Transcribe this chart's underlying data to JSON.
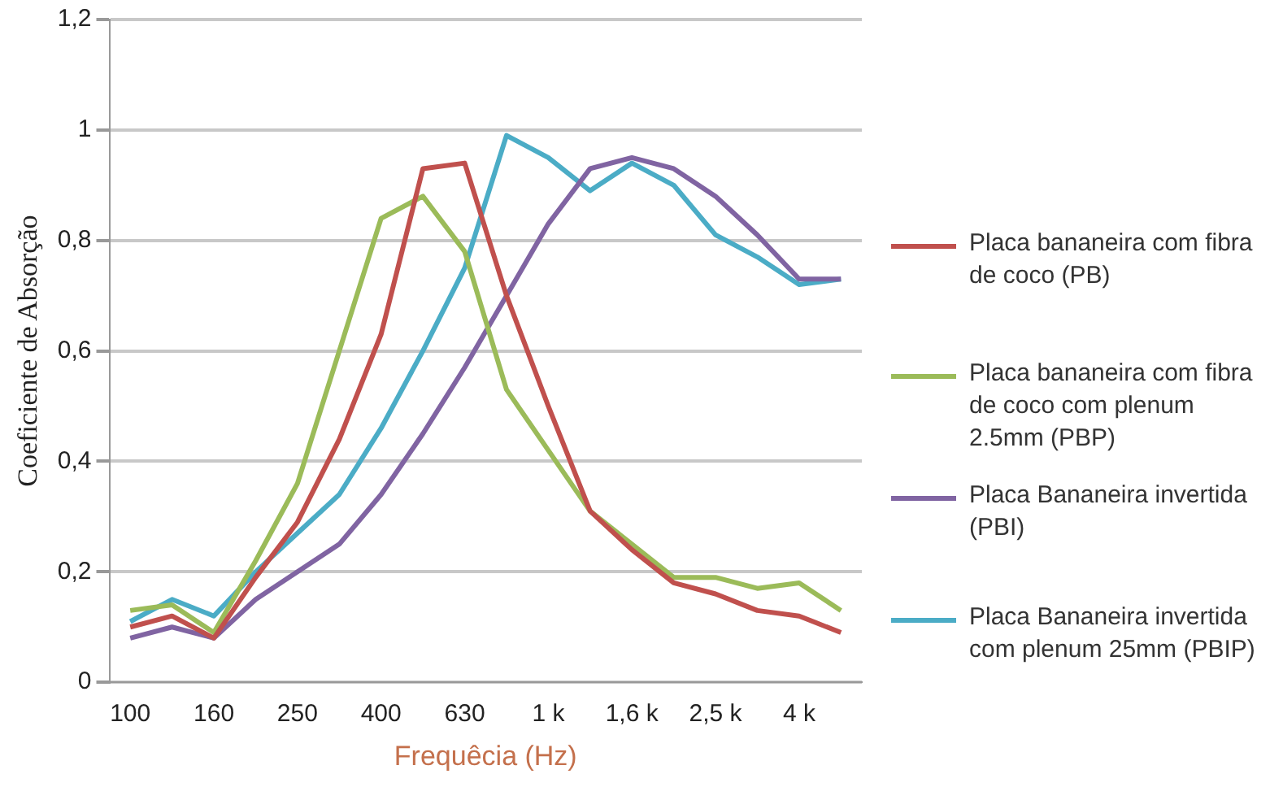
{
  "chart_data": {
    "type": "line",
    "xlabel": "Frequêcia (Hz)",
    "ylabel": "Coeficiente de Absorção",
    "categories": [
      "100",
      null,
      "160",
      null,
      "250",
      null,
      "400",
      null,
      "630",
      null,
      "1 k",
      null,
      "1,6 k",
      null,
      "2,5 k",
      null,
      "4 k",
      null
    ],
    "series": [
      {
        "name": "Placa bananeira com fibra de coco (PB)",
        "color": "#c0504d",
        "values": [
          0.1,
          0.12,
          0.08,
          0.19,
          0.29,
          0.44,
          0.63,
          0.93,
          0.94,
          0.7,
          0.5,
          0.31,
          0.24,
          0.18,
          0.16,
          0.13,
          0.12,
          0.09
        ]
      },
      {
        "name": "Placa bananeira com fibra de coco com plenum 2.5mm (PBP)",
        "color": "#9bbb59",
        "values": [
          0.13,
          0.14,
          0.09,
          0.22,
          0.36,
          0.6,
          0.84,
          0.88,
          0.78,
          0.53,
          0.42,
          0.31,
          0.25,
          0.19,
          0.19,
          0.17,
          0.18,
          0.13
        ]
      },
      {
        "name": "Placa Bananeira invertida (PBI)",
        "color": "#8064a2",
        "values": [
          0.08,
          0.1,
          0.08,
          0.15,
          0.2,
          0.25,
          0.34,
          0.45,
          0.57,
          0.7,
          0.83,
          0.93,
          0.95,
          0.93,
          0.88,
          0.81,
          0.73,
          0.73
        ]
      },
      {
        "name": "Placa Bananeira invertida com plenum 25mm (PBIP)",
        "color": "#4bacc6",
        "values": [
          0.11,
          0.15,
          0.12,
          0.2,
          0.27,
          0.34,
          0.46,
          0.6,
          0.75,
          0.99,
          0.95,
          0.89,
          0.94,
          0.9,
          0.81,
          0.77,
          0.72,
          0.73
        ]
      }
    ],
    "ylim": [
      0,
      1.2
    ],
    "yticks": [
      {
        "value": 0,
        "label": "0"
      },
      {
        "value": 0.2,
        "label": "0,2"
      },
      {
        "value": 0.4,
        "label": "0,4"
      },
      {
        "value": 0.6,
        "label": "0,6"
      },
      {
        "value": 0.8,
        "label": "0,8"
      },
      {
        "value": 1,
        "label": "1"
      },
      {
        "value": 1.2,
        "label": "1,2"
      }
    ],
    "grid": "y",
    "legend": "right",
    "marker": "none",
    "line_style": "solid"
  }
}
